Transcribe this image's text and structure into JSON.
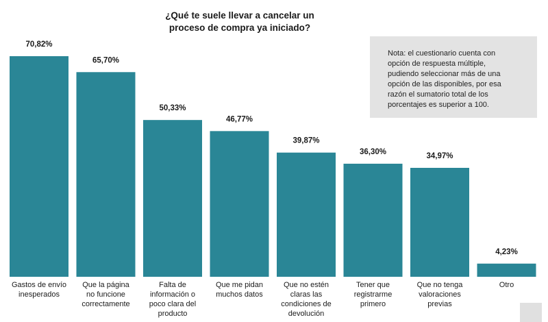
{
  "chart_data": {
    "type": "bar",
    "title_lines": [
      "¿Qué te suele llevar a cancelar un",
      "proceso de compra ya iniciado?"
    ],
    "categories": [
      [
        "Gastos de envío",
        "inesperados"
      ],
      [
        "Que la página",
        "no funcione",
        "correctamente"
      ],
      [
        "Falta de",
        "información o",
        "poco clara del",
        "producto"
      ],
      [
        "Que me pidan",
        "muchos datos"
      ],
      [
        "Que no estén",
        "claras las",
        "condiciones de",
        "devolución"
      ],
      [
        "Tener que",
        "registrarme",
        "primero"
      ],
      [
        "Que no tenga",
        "valoraciones",
        "previas"
      ],
      [
        "Otro"
      ]
    ],
    "values": [
      70.82,
      65.7,
      50.33,
      46.77,
      39.87,
      36.3,
      34.97,
      4.23
    ],
    "value_labels": [
      "70,82%",
      "65,70%",
      "50,33%",
      "46,77%",
      "39,87%",
      "36,30%",
      "34,97%",
      "4,23%"
    ],
    "ylim": [
      0,
      75
    ],
    "bar_color": "#2a8696",
    "grid": false
  },
  "note": {
    "lines": [
      "Nota: el cuestionario cuenta con",
      "opción de respuesta múltiple,",
      "pudiendo seleccionar más de una",
      "opción de las disponibles, por esa",
      "razón el sumatorio total de los",
      "porcentajes es superior a 100."
    ]
  }
}
